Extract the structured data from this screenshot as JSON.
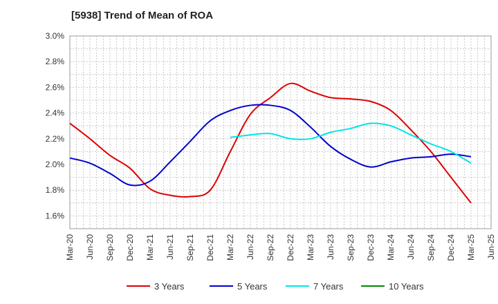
{
  "title": "[5938]  Trend of Mean of ROA",
  "chart_data": {
    "type": "line",
    "title": "[5938]  Trend of Mean of ROA",
    "x": [
      "Mar-20",
      "Jun-20",
      "Sep-20",
      "Dec-20",
      "Mar-21",
      "Jun-21",
      "Sep-21",
      "Dec-21",
      "Mar-22",
      "Jun-22",
      "Sep-22",
      "Dec-22",
      "Mar-23",
      "Jun-23",
      "Sep-23",
      "Dec-23",
      "Mar-24",
      "Jun-24",
      "Sep-24",
      "Dec-24",
      "Mar-25",
      "Jun-25"
    ],
    "ylim": [
      1.5,
      3.0
    ],
    "yticks": [
      1.6,
      1.8,
      2.0,
      2.2,
      2.4,
      2.6,
      2.8,
      3.0
    ],
    "ytick_labels": [
      "1.6%",
      "1.8%",
      "2.0%",
      "2.2%",
      "2.4%",
      "2.6%",
      "2.8%",
      "3.0%"
    ],
    "grid": true,
    "legend_position": "bottom",
    "series": [
      {
        "name": "3 Years",
        "color": "#dd0000",
        "values": [
          2.32,
          2.2,
          2.07,
          1.97,
          1.81,
          1.76,
          1.75,
          1.8,
          2.1,
          2.39,
          2.52,
          2.63,
          2.57,
          2.52,
          2.51,
          2.49,
          2.42,
          2.27,
          2.1,
          1.9,
          1.7,
          null
        ]
      },
      {
        "name": "5 Years",
        "color": "#0000cc",
        "values": [
          2.05,
          2.01,
          1.93,
          1.84,
          1.87,
          2.02,
          2.18,
          2.34,
          2.42,
          2.46,
          2.46,
          2.42,
          2.29,
          2.14,
          2.04,
          1.98,
          2.02,
          2.05,
          2.06,
          2.08,
          2.06,
          null
        ]
      },
      {
        "name": "7 Years",
        "color": "#00e5e5",
        "values": [
          null,
          null,
          null,
          null,
          null,
          null,
          null,
          null,
          2.21,
          2.23,
          2.24,
          2.2,
          2.2,
          2.25,
          2.28,
          2.32,
          2.3,
          2.23,
          2.16,
          2.1,
          2.01,
          null
        ]
      },
      {
        "name": "10 Years",
        "color": "#008800",
        "values": [
          null,
          null,
          null,
          null,
          null,
          null,
          null,
          null,
          null,
          null,
          null,
          null,
          null,
          null,
          null,
          null,
          null,
          null,
          null,
          null,
          null,
          null
        ]
      }
    ]
  }
}
